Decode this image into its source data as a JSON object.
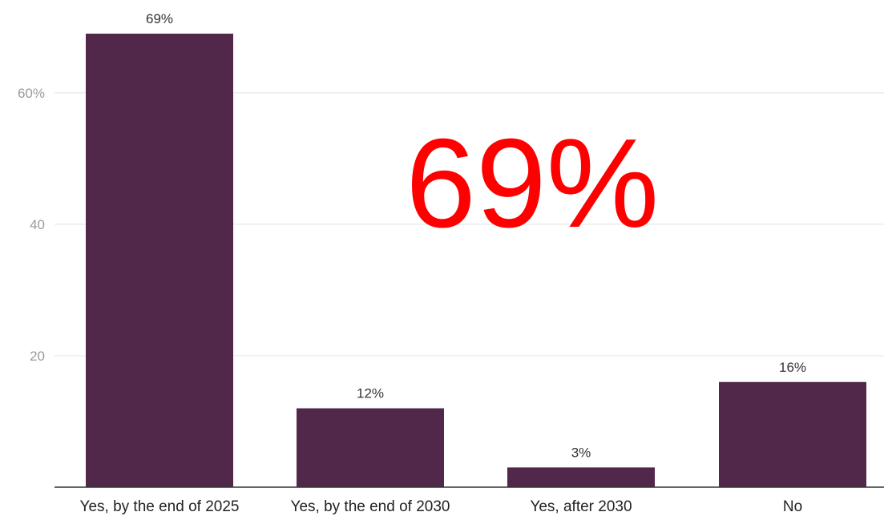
{
  "overlay": {
    "text": "69%",
    "color": "#ff0000"
  },
  "chart_data": {
    "type": "bar",
    "categories": [
      "Yes, by the end of 2025",
      "Yes, by the end of 2030",
      "Yes, after 2030",
      "No"
    ],
    "values": [
      69,
      12,
      3,
      16
    ],
    "value_labels": [
      "69%",
      "12%",
      "3%",
      "16%"
    ],
    "ylim": [
      0,
      70
    ],
    "yticks": [
      {
        "value": 20,
        "label": "20"
      },
      {
        "value": 40,
        "label": "40"
      },
      {
        "value": 60,
        "label": "60%"
      }
    ],
    "grid": true,
    "legend": "none",
    "bar_color": "#52284a",
    "title": "",
    "xlabel": "",
    "ylabel": ""
  }
}
